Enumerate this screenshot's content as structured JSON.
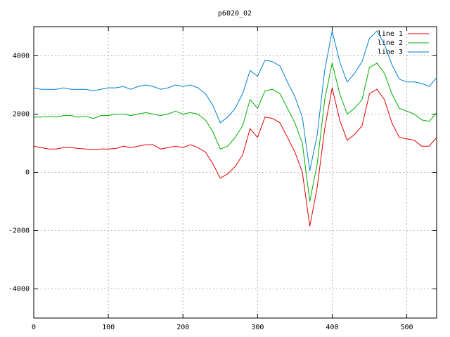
{
  "chart_data": {
    "type": "line",
    "title": "p6020_02",
    "x": [
      0,
      10,
      20,
      30,
      40,
      50,
      60,
      70,
      80,
      90,
      100,
      110,
      120,
      130,
      140,
      150,
      160,
      170,
      180,
      190,
      200,
      210,
      220,
      230,
      240,
      250,
      260,
      270,
      280,
      290,
      300,
      310,
      320,
      330,
      340,
      350,
      360,
      370,
      380,
      390,
      400,
      410,
      420,
      430,
      440,
      450,
      460,
      470,
      480,
      490,
      500,
      510,
      520,
      530,
      540
    ],
    "series": [
      {
        "name": "line 1",
        "color": "#e00000",
        "values": [
          900,
          850,
          800,
          800,
          850,
          850,
          820,
          800,
          780,
          800,
          800,
          820,
          900,
          850,
          900,
          950,
          950,
          800,
          850,
          900,
          850,
          950,
          850,
          700,
          300,
          -200,
          -50,
          200,
          600,
          1500,
          1200,
          1900,
          1850,
          1700,
          1200,
          700,
          0,
          -1850,
          -500,
          1500,
          2900,
          1800,
          1100,
          1300,
          1600,
          2700,
          2850,
          2500,
          1700,
          1200,
          1150,
          1100,
          900,
          900,
          1200
        ]
      },
      {
        "name": "line 2",
        "color": "#00b000",
        "values": [
          1900,
          1900,
          1920,
          1900,
          1950,
          1950,
          1900,
          1920,
          1850,
          1950,
          1950,
          2000,
          2000,
          1950,
          2000,
          2050,
          2000,
          1950,
          2000,
          2100,
          2000,
          2050,
          2000,
          1800,
          1400,
          800,
          900,
          1200,
          1600,
          2500,
          2200,
          2800,
          2850,
          2700,
          2200,
          1700,
          1000,
          -1000,
          300,
          2500,
          3750,
          2700,
          2000,
          2200,
          2500,
          3600,
          3750,
          3400,
          2700,
          2200,
          2100,
          2000,
          1800,
          1750,
          2050
        ]
      },
      {
        "name": "line 3",
        "color": "#0080d0",
        "values": [
          2900,
          2850,
          2850,
          2850,
          2900,
          2850,
          2850,
          2850,
          2800,
          2850,
          2900,
          2900,
          2950,
          2850,
          2950,
          3000,
          2950,
          2850,
          2900,
          3000,
          2950,
          3000,
          2900,
          2700,
          2300,
          1700,
          1900,
          2200,
          2700,
          3500,
          3300,
          3850,
          3800,
          3650,
          3100,
          2600,
          1900,
          50,
          1300,
          3500,
          4850,
          3800,
          3100,
          3400,
          3800,
          4600,
          4850,
          4400,
          3700,
          3200,
          3100,
          3100,
          3050,
          2950,
          3250
        ]
      }
    ],
    "xlim": [
      0,
      540
    ],
    "xticks": [
      0,
      100,
      200,
      300,
      400,
      500
    ],
    "ylim": [
      -5000,
      5000
    ],
    "yticks": [
      -4000,
      -2000,
      0,
      2000,
      4000
    ],
    "grid": true,
    "legend": "top-right"
  }
}
